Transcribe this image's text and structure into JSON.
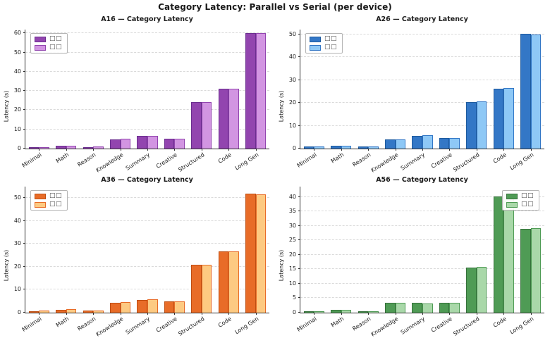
{
  "figure": {
    "title": "Category Latency: Parallel vs Serial (per device)",
    "background": "#ffffff",
    "grid_color": "#dadada",
    "spine_color": "#2f2f2f"
  },
  "chart_data": [
    {
      "type": "bar",
      "device": "A16",
      "title": "A16 — Category Latency",
      "ylabel": "Latency (s)",
      "categories": [
        "Minimal",
        "Math",
        "Reason",
        "Knowledge",
        "Summary",
        "Creative",
        "Structured",
        "Code",
        "Long Gen"
      ],
      "yticks": [
        0,
        10,
        20,
        30,
        40,
        50,
        60
      ],
      "ylim": [
        0,
        62
      ],
      "grid": "horizontal-dashed",
      "legend_position": "top-left",
      "legend_labels": [
        "□□",
        "□□"
      ],
      "series": [
        {
          "name": "Parallel",
          "values": [
            0.8,
            1.4,
            0.9,
            4.8,
            6.6,
            5.2,
            24.3,
            31.2,
            60.2
          ],
          "fill": "#9245af",
          "edge": "#6b2e8f"
        },
        {
          "name": "Serial",
          "values": [
            0.9,
            1.5,
            1.0,
            5.0,
            6.7,
            5.3,
            24.4,
            31.3,
            60.0
          ],
          "fill": "#d295e2",
          "edge": "#9245af"
        }
      ]
    },
    {
      "type": "bar",
      "device": "A26",
      "title": "A26 — Category Latency",
      "ylabel": "Latency (s)",
      "categories": [
        "Minimal",
        "Math",
        "Reason",
        "Knowledge",
        "Summary",
        "Creative",
        "Structured",
        "Code",
        "Long Gen"
      ],
      "yticks": [
        0,
        10,
        20,
        30,
        40,
        50
      ],
      "ylim": [
        0,
        52
      ],
      "grid": "horizontal-dashed",
      "legend_position": "top-left",
      "legend_labels": [
        "□□",
        "□□"
      ],
      "series": [
        {
          "name": "Parallel",
          "values": [
            0.9,
            1.2,
            0.8,
            4.1,
            5.6,
            4.6,
            20.3,
            26.2,
            50.2
          ],
          "fill": "#3377c6",
          "edge": "#1d5a9e"
        },
        {
          "name": "Serial",
          "values": [
            0.9,
            1.3,
            0.9,
            4.1,
            5.8,
            4.7,
            20.6,
            26.4,
            50.0
          ],
          "fill": "#8ec8f6",
          "edge": "#3377c6"
        }
      ]
    },
    {
      "type": "bar",
      "device": "A36",
      "title": "A36 — Category Latency",
      "ylabel": "Latency (s)",
      "categories": [
        "Minimal",
        "Math",
        "Reason",
        "Knowledge",
        "Summary",
        "Creative",
        "Structured",
        "Code",
        "Long Gen"
      ],
      "yticks": [
        0,
        10,
        20,
        30,
        40,
        50
      ],
      "ylim": [
        0,
        55
      ],
      "grid": "horizontal-dashed",
      "legend_position": "top-left",
      "legend_labels": [
        "□□",
        "□□"
      ],
      "series": [
        {
          "name": "Parallel",
          "values": [
            0.7,
            1.3,
            0.9,
            4.3,
            5.6,
            4.8,
            20.9,
            26.8,
            52.0
          ],
          "fill": "#e86c28",
          "edge": "#bf4e12"
        },
        {
          "name": "Serial",
          "values": [
            0.9,
            1.4,
            0.9,
            4.5,
            5.7,
            4.9,
            20.9,
            26.6,
            51.6
          ],
          "fill": "#fdca82",
          "edge": "#e86c28"
        }
      ]
    },
    {
      "type": "bar",
      "device": "A56",
      "title": "A56 — Category Latency",
      "ylabel": "Latency (s)",
      "categories": [
        "Minimal",
        "Math",
        "Reason",
        "Knowledge",
        "Summary",
        "Creative",
        "Structured",
        "Code",
        "Long Gen"
      ],
      "yticks": [
        0,
        5,
        10,
        15,
        20,
        25,
        30,
        35,
        40
      ],
      "ylim": [
        0,
        43.6
      ],
      "grid": "horizontal-dashed",
      "legend_position": "top-right",
      "legend_labels": [
        "□□",
        "□□"
      ],
      "series": [
        {
          "name": "Parallel",
          "values": [
            0.4,
            0.9,
            0.5,
            3.3,
            3.3,
            3.4,
            15.5,
            40.3,
            28.9
          ],
          "fill": "#4f9b55",
          "edge": "#35713a"
        },
        {
          "name": "Serial",
          "values": [
            0.5,
            1.0,
            0.6,
            3.4,
            3.2,
            3.5,
            15.9,
            41.0,
            29.3
          ],
          "fill": "#a9d8a9",
          "edge": "#4f9b55"
        }
      ]
    }
  ]
}
